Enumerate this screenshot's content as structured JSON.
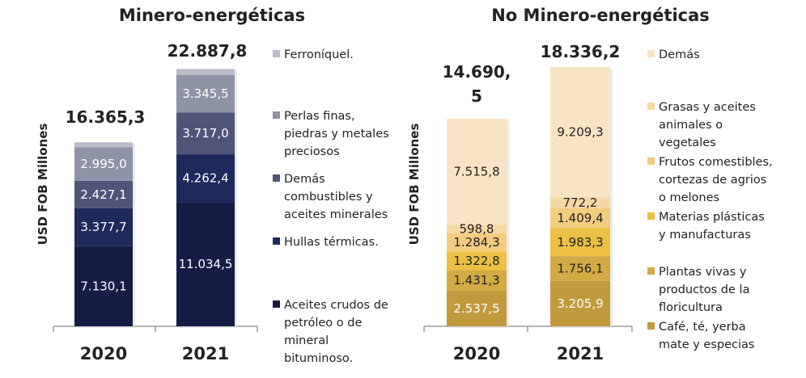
{
  "chart_data": [
    {
      "type": "bar",
      "stacked": true,
      "title": "Minero-energéticas",
      "ylabel": "USD FOB Millones",
      "categories": [
        "2020",
        "2021"
      ],
      "totals": [
        "16.365,3",
        "22.887,8"
      ],
      "ylim": [
        0,
        24000
      ],
      "series": [
        {
          "name": "Aceites crudos de petróleo o de mineral bituminoso.",
          "color": "#151d45",
          "text_color": "#ffffff",
          "values": [
            7130.1,
            11034.5
          ],
          "labels": [
            "7.130,1",
            "11.034,5"
          ]
        },
        {
          "name": "Hullas térmicas.",
          "color": "#1e2a5c",
          "text_color": "#ffffff",
          "values": [
            3377.7,
            4262.4
          ],
          "labels": [
            "3.377,7",
            "4.262,4"
          ]
        },
        {
          "name": "Demás combustibles y aceites minerales",
          "color": "#4f5577",
          "text_color": "#ffffff",
          "values": [
            2427.1,
            3717.0
          ],
          "labels": [
            "2.427,1",
            "3.717,0"
          ]
        },
        {
          "name": "Perlas finas, piedras y metales preciosos",
          "color": "#8e93a8",
          "text_color": "#ffffff",
          "values": [
            2995.0,
            3345.5
          ],
          "labels": [
            "2.995,0",
            "3.345,5"
          ]
        },
        {
          "name": "Ferroníquel.",
          "color": "#b9bcc8",
          "text_color": "#ffffff",
          "values": [
            435.4,
            528.4
          ],
          "labels": [
            "",
            ""
          ]
        }
      ]
    },
    {
      "type": "bar",
      "stacked": true,
      "title": "No Minero-energéticas",
      "ylabel": "USD FOB Millones",
      "categories": [
        "2020",
        "2021"
      ],
      "totals": [
        "14.690,\n5",
        "18.336,2"
      ],
      "ylim": [
        0,
        24000
      ],
      "series": [
        {
          "name": "Café, té, yerba mate y especias",
          "color": "#c19a3e",
          "text_color": "#ffffff",
          "values": [
            2537.5,
            3205.9
          ],
          "labels": [
            "2.537,5",
            "3.205,9"
          ]
        },
        {
          "name": "Plantas vivas y productos de la floricultura",
          "color": "#d3ab45",
          "text_color": "#222222",
          "values": [
            1431.3,
            1756.1
          ],
          "labels": [
            "1.431,3",
            "1.756,1"
          ]
        },
        {
          "name": "Materias plásticas y manufacturas",
          "color": "#ebc044",
          "text_color": "#222222",
          "values": [
            1322.8,
            1983.3
          ],
          "labels": [
            "1.322,8",
            "1.983,3"
          ]
        },
        {
          "name": "Frutos comestibles, cortezas de agrios o melones",
          "color": "#f3cd7f",
          "text_color": "#222222",
          "values": [
            1284.3,
            1409.4
          ],
          "labels": [
            "1.284,3",
            "1.409,4"
          ]
        },
        {
          "name": "Grasas y aceites animales o vegetales",
          "color": "#f6d8a4",
          "text_color": "#222222",
          "values": [
            598.8,
            772.2
          ],
          "labels": [
            "598,8",
            "772,2"
          ]
        },
        {
          "name": "Demás",
          "color": "#f8e4c4",
          "text_color": "#222222",
          "values": [
            7515.8,
            9209.3
          ],
          "labels": [
            "7.515,8",
            "9.209,3"
          ]
        }
      ]
    }
  ],
  "legends": [
    {
      "items": [
        {
          "series": 4,
          "lines": [
            "Ferroníquel."
          ]
        },
        {
          "series": 3,
          "lines": [
            "Perlas finas,",
            "piedras y metales",
            "preciosos"
          ]
        },
        {
          "series": 2,
          "lines": [
            "Demás",
            "combustibles y",
            "aceites minerales"
          ]
        },
        {
          "series": 1,
          "lines": [
            "Hullas térmicas."
          ]
        },
        {
          "series": 0,
          "lines": [
            "Aceites crudos de",
            "petróleo o de",
            "mineral",
            "bituminoso."
          ]
        }
      ]
    },
    {
      "items": [
        {
          "series": 5,
          "lines": [
            "Demás"
          ]
        },
        {
          "series": 4,
          "lines": [
            "Grasas y aceites",
            "animales o",
            "vegetales"
          ]
        },
        {
          "series": 3,
          "lines": [
            "Frutos comestibles,",
            "cortezas de agrios",
            "o melones"
          ]
        },
        {
          "series": 2,
          "lines": [
            "Materias plásticas",
            "y manufacturas"
          ]
        },
        {
          "series": 1,
          "lines": [
            "Plantas vivas y",
            "productos de la",
            "floricultura"
          ]
        },
        {
          "series": 0,
          "lines": [
            "Café, té, yerba",
            "mate y especias"
          ]
        }
      ]
    }
  ]
}
